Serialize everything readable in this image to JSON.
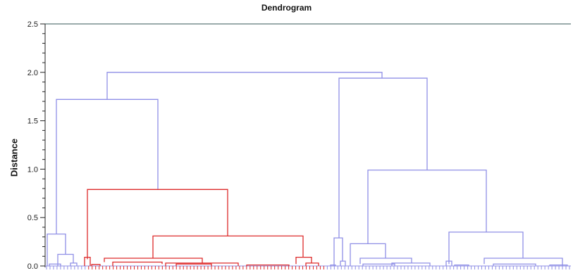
{
  "chart_data": {
    "type": "dendrogram",
    "title": "Dendrogram",
    "ylabel": "Distance",
    "xlabel": "",
    "ylim": [
      0,
      2.5
    ],
    "y_ticks": [
      "0.0",
      "0.5",
      "1.0",
      "1.5",
      "2.0",
      "2.5"
    ],
    "y_tick_values": [
      0,
      0.5,
      1.0,
      1.5,
      2.0,
      2.5
    ],
    "grid": false,
    "leaf_count": 150,
    "threshold_line": 2.5,
    "colors": {
      "cluster_red": "#dd2a2a",
      "cluster_blue": "#8f8fe6",
      "threshold_line": "#9aabab",
      "axis": "#222222"
    },
    "merges": [
      {
        "height": 2.0,
        "cluster": "blue"
      },
      {
        "height": 1.94,
        "cluster": "blue"
      },
      {
        "height": 1.72,
        "cluster": "blue"
      },
      {
        "height": 0.99,
        "cluster": "blue"
      },
      {
        "height": 0.79,
        "cluster": "red"
      },
      {
        "height": 0.35,
        "cluster": "blue"
      },
      {
        "height": 0.33,
        "cluster": "blue"
      },
      {
        "height": 0.31,
        "cluster": "red"
      },
      {
        "height": 0.29,
        "cluster": "blue"
      },
      {
        "height": 0.23,
        "cluster": "blue"
      },
      {
        "height": 0.12,
        "cluster": "blue"
      },
      {
        "height": 0.09,
        "cluster": "red"
      },
      {
        "height": 0.08,
        "cluster": "red"
      },
      {
        "height": 0.08,
        "cluster": "blue"
      },
      {
        "height": 0.07,
        "cluster": "red"
      },
      {
        "height": 0.07,
        "cluster": "blue"
      }
    ]
  }
}
